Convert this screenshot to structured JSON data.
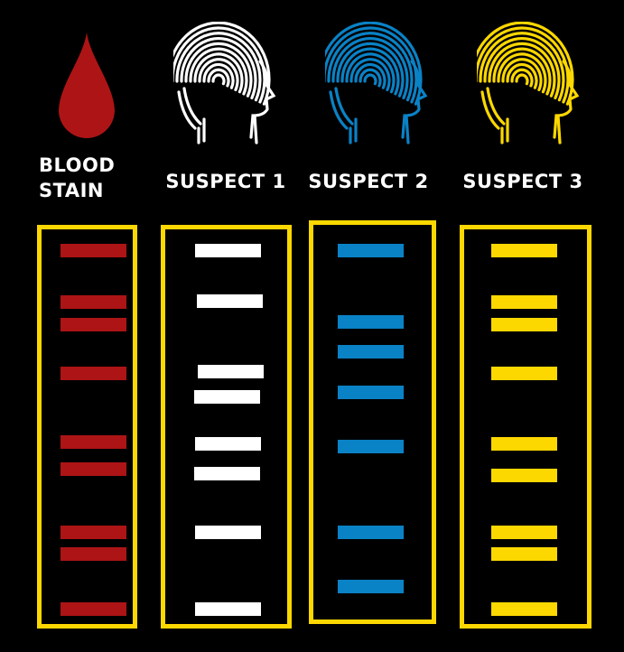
{
  "colors": {
    "background": "#000000",
    "frame": "#FDD800",
    "blood": "#AD1416",
    "suspect1": "#FFFFFF",
    "suspect2": "#0A82C6",
    "suspect3": "#FDD800"
  },
  "icons": {
    "blood": "blood-drop-icon",
    "suspect1": "fingerprint-head-icon",
    "suspect2": "fingerprint-head-icon",
    "suspect3": "fingerprint-head-icon"
  },
  "labels": {
    "blood_line1": "BLOOD",
    "blood_line2": "STAIN",
    "suspect1": "SUSPECT 1",
    "suspect2": "SUSPECT 2",
    "suspect3": "SUSPECT 3"
  },
  "lanes": [
    {
      "name": "blood-stain",
      "color_key": "blood",
      "bands": 9
    },
    {
      "name": "suspect-1",
      "color_key": "suspect1",
      "bands": 8
    },
    {
      "name": "suspect-2",
      "color_key": "suspect2",
      "bands": 7
    },
    {
      "name": "suspect-3",
      "color_key": "suspect3",
      "bands": 9
    }
  ]
}
